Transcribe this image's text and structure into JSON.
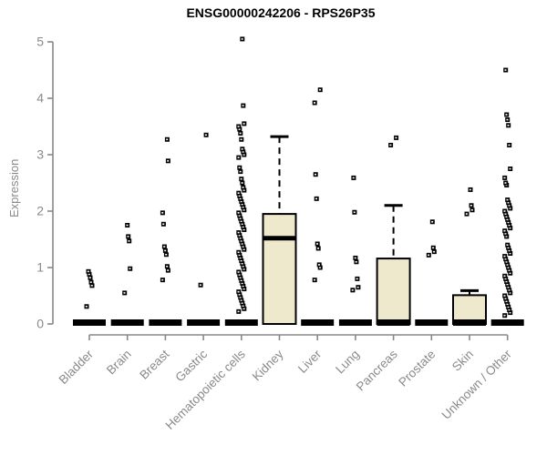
{
  "colors": {
    "box_fill": "#EEE8CD",
    "box_stroke": "#000000",
    "axis": "#888888",
    "tick_label": "#8a8a8a",
    "title": "#000000",
    "background": "#FFFFFF"
  },
  "chart_data": {
    "type": "boxplot",
    "title": "ENSG00000242206 - RPS26P35",
    "xlabel": "",
    "ylabel": "Expression",
    "ylim": [
      0,
      5
    ],
    "y_ticks": [
      0,
      1,
      2,
      3,
      4,
      5
    ],
    "grid": false,
    "categories": [
      "Bladder",
      "Brain",
      "Breast",
      "Gastric",
      "Hematopoietic cells",
      "Kidney",
      "Liver",
      "Lung",
      "Pancreas",
      "Prostate",
      "Skin",
      "Unknown / Other"
    ],
    "series": [
      {
        "name": "Bladder",
        "q1": 0,
        "median": 0,
        "q3": 0,
        "whisker_low": 0,
        "whisker_high": 0,
        "outliers": [
          0.31,
          0.68,
          0.74,
          0.82,
          0.88,
          0.93
        ]
      },
      {
        "name": "Brain",
        "q1": 0,
        "median": 0,
        "q3": 0,
        "whisker_low": 0,
        "whisker_high": 0,
        "outliers": [
          0.55,
          0.98,
          1.47,
          1.55,
          1.75
        ]
      },
      {
        "name": "Breast",
        "q1": 0,
        "median": 0,
        "q3": 0,
        "whisker_low": 0,
        "whisker_high": 0,
        "outliers": [
          0.78,
          0.95,
          1.02,
          1.23,
          1.3,
          1.37,
          1.77,
          1.97,
          2.89,
          3.27
        ]
      },
      {
        "name": "Gastric",
        "q1": 0,
        "median": 0,
        "q3": 0,
        "whisker_low": 0,
        "whisker_high": 0,
        "outliers": [
          0.69,
          3.35
        ]
      },
      {
        "name": "Hematopoietic cells",
        "q1": 0,
        "median": 0,
        "q3": 0,
        "whisker_low": 0,
        "whisker_high": 0,
        "outliers": [
          0.22,
          0.27,
          0.32,
          0.37,
          0.42,
          0.47,
          0.52,
          0.57,
          0.62,
          0.67,
          0.72,
          0.77,
          0.82,
          0.87,
          0.92,
          0.97,
          1.02,
          1.07,
          1.12,
          1.17,
          1.22,
          1.27,
          1.32,
          1.37,
          1.42,
          1.47,
          1.52,
          1.57,
          1.62,
          1.67,
          1.72,
          1.77,
          1.82,
          1.87,
          1.92,
          1.97,
          2.02,
          2.07,
          2.12,
          2.17,
          2.22,
          2.27,
          2.32,
          2.37,
          2.42,
          2.5,
          2.57,
          2.7,
          2.77,
          2.95,
          3.0,
          3.05,
          3.1,
          3.27,
          3.38,
          3.45,
          3.5,
          3.55,
          3.87,
          5.05
        ]
      },
      {
        "name": "Kidney",
        "q1": 0,
        "median": 1.52,
        "q3": 1.95,
        "whisker_low": 0,
        "whisker_high": 3.32,
        "outliers": []
      },
      {
        "name": "Liver",
        "q1": 0,
        "median": 0,
        "q3": 0,
        "whisker_low": 0,
        "whisker_high": 0,
        "outliers": [
          0.78,
          1.0,
          1.05,
          1.34,
          1.42,
          2.22,
          2.65,
          3.92,
          4.15
        ]
      },
      {
        "name": "Lung",
        "q1": 0,
        "median": 0,
        "q3": 0,
        "whisker_low": 0,
        "whisker_high": 0,
        "outliers": [
          0.6,
          0.65,
          0.8,
          1.1,
          1.17,
          1.98,
          2.59
        ]
      },
      {
        "name": "Pancreas",
        "q1": 0,
        "median": 0.03,
        "q3": 1.16,
        "whisker_low": 0,
        "whisker_high": 2.1,
        "outliers": [
          3.17,
          3.3
        ]
      },
      {
        "name": "Prostate",
        "q1": 0,
        "median": 0,
        "q3": 0,
        "whisker_low": 0,
        "whisker_high": 0,
        "outliers": [
          1.22,
          1.28,
          1.35,
          1.81
        ]
      },
      {
        "name": "Skin",
        "q1": 0,
        "median": 0.03,
        "q3": 0.51,
        "whisker_low": 0,
        "whisker_high": 0.59,
        "outliers": [
          1.95,
          2.02,
          2.1,
          2.38
        ]
      },
      {
        "name": "Unknown / Other",
        "q1": 0,
        "median": 0,
        "q3": 0,
        "whisker_low": 0,
        "whisker_high": 0,
        "outliers": [
          0.15,
          0.2,
          0.25,
          0.3,
          0.35,
          0.4,
          0.45,
          0.5,
          0.55,
          0.6,
          0.65,
          0.7,
          0.75,
          0.8,
          0.85,
          0.9,
          0.95,
          1.0,
          1.05,
          1.1,
          1.15,
          1.2,
          1.25,
          1.3,
          1.35,
          1.4,
          1.55,
          1.6,
          1.65,
          1.7,
          1.75,
          1.8,
          1.85,
          1.9,
          1.95,
          2.0,
          2.05,
          2.1,
          2.15,
          2.2,
          2.46,
          2.5,
          2.59,
          2.75,
          3.17,
          3.52,
          3.62,
          3.71,
          4.5
        ]
      }
    ]
  }
}
